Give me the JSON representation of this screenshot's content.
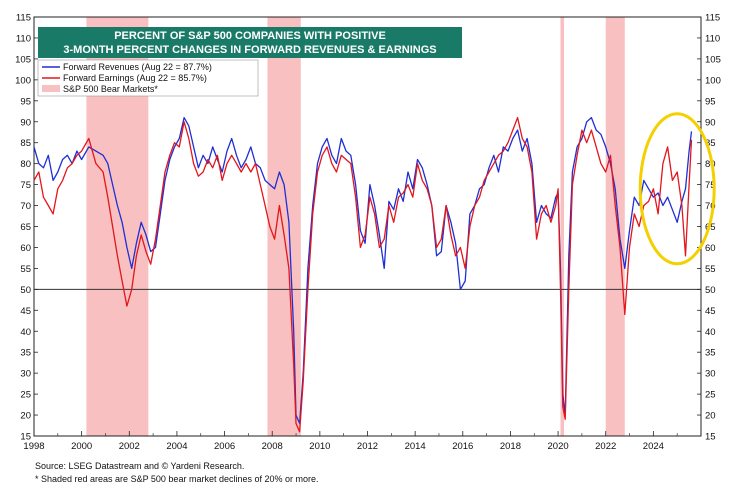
{
  "chart_data": {
    "type": "line",
    "title": [
      "PERCENT OF S&P 500 COMPANIES WITH POSITIVE",
      "3-MONTH PERCENT CHANGES IN FORWARD REVENUES & EARNINGS"
    ],
    "xlim": [
      1998,
      2026
    ],
    "ylim": [
      15,
      115
    ],
    "x_ticks": [
      "1998",
      "2000",
      "2002",
      "2004",
      "2006",
      "2008",
      "2010",
      "2012",
      "2014",
      "2016",
      "2018",
      "2020",
      "2022",
      "2024"
    ],
    "y_ticks": [
      15,
      20,
      25,
      30,
      35,
      40,
      45,
      50,
      55,
      60,
      65,
      70,
      75,
      80,
      85,
      90,
      95,
      100,
      105,
      110,
      115
    ],
    "reference_line": 50,
    "bear_markets": [
      [
        2000.2,
        2002.8
      ],
      [
        2007.8,
        2009.2
      ],
      [
        2020.1,
        2020.25
      ],
      [
        2022.0,
        2022.8
      ]
    ],
    "legend": [
      {
        "label": "Forward Revenues (Aug 22 = 87.7%)",
        "color": "#1f2fd6"
      },
      {
        "label": "Forward Earnings (Aug 22 = 85.7%)",
        "color": "#e3161b"
      },
      {
        "label": "S&P 500 Bear Markets*",
        "color": "#f8c0c0"
      }
    ],
    "series": [
      {
        "name": "Forward Revenues (Aug 22 = 87.7%)",
        "color": "#1f2fd6",
        "points": [
          [
            1998.0,
            84
          ],
          [
            1998.2,
            80
          ],
          [
            1998.4,
            79
          ],
          [
            1998.6,
            82
          ],
          [
            1998.8,
            76
          ],
          [
            1999.0,
            78
          ],
          [
            1999.2,
            81
          ],
          [
            1999.4,
            82
          ],
          [
            1999.6,
            80
          ],
          [
            1999.8,
            83
          ],
          [
            2000.0,
            81
          ],
          [
            2000.3,
            84
          ],
          [
            2000.6,
            83
          ],
          [
            2000.9,
            82
          ],
          [
            2001.1,
            80
          ],
          [
            2001.3,
            75
          ],
          [
            2001.5,
            70
          ],
          [
            2001.7,
            66
          ],
          [
            2001.9,
            60
          ],
          [
            2002.1,
            55
          ],
          [
            2002.3,
            61
          ],
          [
            2002.5,
            66
          ],
          [
            2002.7,
            63
          ],
          [
            2002.9,
            59
          ],
          [
            2003.1,
            60
          ],
          [
            2003.3,
            68
          ],
          [
            2003.5,
            76
          ],
          [
            2003.7,
            81
          ],
          [
            2003.9,
            84
          ],
          [
            2004.1,
            86
          ],
          [
            2004.3,
            91
          ],
          [
            2004.5,
            89
          ],
          [
            2004.7,
            84
          ],
          [
            2004.9,
            79
          ],
          [
            2005.1,
            82
          ],
          [
            2005.3,
            80
          ],
          [
            2005.5,
            84
          ],
          [
            2005.7,
            81
          ],
          [
            2005.9,
            78
          ],
          [
            2006.1,
            83
          ],
          [
            2006.3,
            86
          ],
          [
            2006.5,
            82
          ],
          [
            2006.7,
            79
          ],
          [
            2006.9,
            81
          ],
          [
            2007.1,
            84
          ],
          [
            2007.3,
            80
          ],
          [
            2007.5,
            79
          ],
          [
            2007.7,
            76
          ],
          [
            2007.9,
            75
          ],
          [
            2008.1,
            74
          ],
          [
            2008.3,
            78
          ],
          [
            2008.5,
            75
          ],
          [
            2008.7,
            66
          ],
          [
            2008.9,
            40
          ],
          [
            2009.0,
            20
          ],
          [
            2009.15,
            18
          ],
          [
            2009.3,
            30
          ],
          [
            2009.5,
            55
          ],
          [
            2009.7,
            70
          ],
          [
            2009.9,
            80
          ],
          [
            2010.1,
            84
          ],
          [
            2010.3,
            86
          ],
          [
            2010.5,
            82
          ],
          [
            2010.7,
            80
          ],
          [
            2010.9,
            86
          ],
          [
            2011.1,
            83
          ],
          [
            2011.3,
            82
          ],
          [
            2011.5,
            75
          ],
          [
            2011.7,
            64
          ],
          [
            2011.9,
            61
          ],
          [
            2012.1,
            75
          ],
          [
            2012.3,
            70
          ],
          [
            2012.5,
            63
          ],
          [
            2012.7,
            55
          ],
          [
            2012.9,
            71
          ],
          [
            2013.1,
            69
          ],
          [
            2013.3,
            74
          ],
          [
            2013.5,
            71
          ],
          [
            2013.7,
            78
          ],
          [
            2013.9,
            74
          ],
          [
            2014.1,
            81
          ],
          [
            2014.3,
            79
          ],
          [
            2014.5,
            75
          ],
          [
            2014.7,
            70
          ],
          [
            2014.9,
            58
          ],
          [
            2015.1,
            59
          ],
          [
            2015.3,
            70
          ],
          [
            2015.5,
            66
          ],
          [
            2015.7,
            61
          ],
          [
            2015.9,
            50
          ],
          [
            2016.1,
            52
          ],
          [
            2016.3,
            68
          ],
          [
            2016.5,
            70
          ],
          [
            2016.7,
            74
          ],
          [
            2016.9,
            75
          ],
          [
            2017.1,
            79
          ],
          [
            2017.3,
            82
          ],
          [
            2017.5,
            78
          ],
          [
            2017.7,
            84
          ],
          [
            2017.9,
            83
          ],
          [
            2018.1,
            86
          ],
          [
            2018.3,
            88
          ],
          [
            2018.5,
            83
          ],
          [
            2018.7,
            86
          ],
          [
            2018.9,
            80
          ],
          [
            2019.1,
            66
          ],
          [
            2019.3,
            70
          ],
          [
            2019.5,
            68
          ],
          [
            2019.7,
            67
          ],
          [
            2019.9,
            72
          ],
          [
            2020.0,
            73
          ],
          [
            2020.1,
            55
          ],
          [
            2020.2,
            25
          ],
          [
            2020.3,
            20
          ],
          [
            2020.45,
            58
          ],
          [
            2020.6,
            78
          ],
          [
            2020.8,
            84
          ],
          [
            2021.0,
            86
          ],
          [
            2021.2,
            90
          ],
          [
            2021.4,
            91
          ],
          [
            2021.6,
            88
          ],
          [
            2021.8,
            87
          ],
          [
            2022.0,
            84
          ],
          [
            2022.2,
            80
          ],
          [
            2022.4,
            74
          ],
          [
            2022.6,
            62
          ],
          [
            2022.8,
            55
          ],
          [
            2023.0,
            64
          ],
          [
            2023.2,
            72
          ],
          [
            2023.4,
            70
          ],
          [
            2023.6,
            76
          ],
          [
            2023.8,
            74
          ],
          [
            2024.0,
            72
          ],
          [
            2024.2,
            73
          ],
          [
            2024.4,
            70
          ],
          [
            2024.6,
            72
          ],
          [
            2024.8,
            69
          ],
          [
            2025.0,
            66
          ],
          [
            2025.2,
            71
          ],
          [
            2025.35,
            74
          ],
          [
            2025.5,
            83
          ],
          [
            2025.6,
            87.7
          ]
        ]
      },
      {
        "name": "Forward Earnings (Aug 22 = 85.7%)",
        "color": "#e3161b",
        "points": [
          [
            1998.0,
            76
          ],
          [
            1998.2,
            78
          ],
          [
            1998.4,
            72
          ],
          [
            1998.6,
            70
          ],
          [
            1998.8,
            68
          ],
          [
            1999.0,
            74
          ],
          [
            1999.2,
            76
          ],
          [
            1999.4,
            79
          ],
          [
            1999.6,
            80
          ],
          [
            1999.8,
            82
          ],
          [
            2000.0,
            83
          ],
          [
            2000.3,
            86
          ],
          [
            2000.6,
            80
          ],
          [
            2000.9,
            78
          ],
          [
            2001.1,
            72
          ],
          [
            2001.3,
            65
          ],
          [
            2001.5,
            58
          ],
          [
            2001.7,
            52
          ],
          [
            2001.9,
            46
          ],
          [
            2002.1,
            50
          ],
          [
            2002.3,
            58
          ],
          [
            2002.5,
            63
          ],
          [
            2002.7,
            59
          ],
          [
            2002.9,
            56
          ],
          [
            2003.1,
            62
          ],
          [
            2003.3,
            70
          ],
          [
            2003.5,
            78
          ],
          [
            2003.7,
            82
          ],
          [
            2003.9,
            85
          ],
          [
            2004.1,
            84
          ],
          [
            2004.3,
            90
          ],
          [
            2004.5,
            86
          ],
          [
            2004.7,
            80
          ],
          [
            2004.9,
            77
          ],
          [
            2005.1,
            78
          ],
          [
            2005.3,
            81
          ],
          [
            2005.5,
            79
          ],
          [
            2005.7,
            82
          ],
          [
            2005.9,
            76
          ],
          [
            2006.1,
            80
          ],
          [
            2006.3,
            82
          ],
          [
            2006.5,
            80
          ],
          [
            2006.7,
            78
          ],
          [
            2006.9,
            80
          ],
          [
            2007.1,
            78
          ],
          [
            2007.3,
            80
          ],
          [
            2007.5,
            75
          ],
          [
            2007.7,
            70
          ],
          [
            2007.9,
            65
          ],
          [
            2008.1,
            62
          ],
          [
            2008.3,
            70
          ],
          [
            2008.5,
            63
          ],
          [
            2008.7,
            55
          ],
          [
            2008.9,
            32
          ],
          [
            2009.0,
            18
          ],
          [
            2009.15,
            16
          ],
          [
            2009.3,
            28
          ],
          [
            2009.5,
            50
          ],
          [
            2009.7,
            68
          ],
          [
            2009.9,
            78
          ],
          [
            2010.1,
            82
          ],
          [
            2010.3,
            84
          ],
          [
            2010.5,
            80
          ],
          [
            2010.7,
            78
          ],
          [
            2010.9,
            82
          ],
          [
            2011.1,
            81
          ],
          [
            2011.3,
            80
          ],
          [
            2011.5,
            72
          ],
          [
            2011.7,
            60
          ],
          [
            2011.9,
            63
          ],
          [
            2012.1,
            72
          ],
          [
            2012.3,
            68
          ],
          [
            2012.5,
            60
          ],
          [
            2012.7,
            62
          ],
          [
            2012.9,
            70
          ],
          [
            2013.1,
            66
          ],
          [
            2013.3,
            72
          ],
          [
            2013.5,
            73
          ],
          [
            2013.7,
            75
          ],
          [
            2013.9,
            72
          ],
          [
            2014.1,
            80
          ],
          [
            2014.3,
            76
          ],
          [
            2014.5,
            74
          ],
          [
            2014.7,
            70
          ],
          [
            2014.9,
            60
          ],
          [
            2015.1,
            62
          ],
          [
            2015.3,
            70
          ],
          [
            2015.5,
            63
          ],
          [
            2015.7,
            58
          ],
          [
            2015.9,
            60
          ],
          [
            2016.1,
            55
          ],
          [
            2016.3,
            65
          ],
          [
            2016.5,
            70
          ],
          [
            2016.7,
            72
          ],
          [
            2016.9,
            76
          ],
          [
            2017.1,
            78
          ],
          [
            2017.3,
            80
          ],
          [
            2017.5,
            82
          ],
          [
            2017.7,
            83
          ],
          [
            2017.9,
            85
          ],
          [
            2018.1,
            88
          ],
          [
            2018.3,
            91
          ],
          [
            2018.5,
            86
          ],
          [
            2018.7,
            84
          ],
          [
            2018.9,
            78
          ],
          [
            2019.1,
            62
          ],
          [
            2019.3,
            68
          ],
          [
            2019.5,
            70
          ],
          [
            2019.7,
            66
          ],
          [
            2019.9,
            70
          ],
          [
            2020.0,
            74
          ],
          [
            2020.1,
            50
          ],
          [
            2020.2,
            22
          ],
          [
            2020.3,
            19
          ],
          [
            2020.45,
            50
          ],
          [
            2020.6,
            75
          ],
          [
            2020.8,
            82
          ],
          [
            2021.0,
            88
          ],
          [
            2021.2,
            85
          ],
          [
            2021.4,
            88
          ],
          [
            2021.6,
            84
          ],
          [
            2021.8,
            80
          ],
          [
            2022.0,
            78
          ],
          [
            2022.2,
            82
          ],
          [
            2022.4,
            70
          ],
          [
            2022.6,
            60
          ],
          [
            2022.8,
            44
          ],
          [
            2023.0,
            60
          ],
          [
            2023.2,
            68
          ],
          [
            2023.4,
            65
          ],
          [
            2023.6,
            70
          ],
          [
            2023.8,
            71
          ],
          [
            2024.0,
            74
          ],
          [
            2024.2,
            68
          ],
          [
            2024.4,
            80
          ],
          [
            2024.6,
            84
          ],
          [
            2024.8,
            76
          ],
          [
            2025.0,
            78
          ],
          [
            2025.2,
            70
          ],
          [
            2025.35,
            58
          ],
          [
            2025.5,
            75
          ],
          [
            2025.6,
            85.7
          ]
        ]
      }
    ],
    "annotation": "yellow circle highlight"
  },
  "footnotes": {
    "source": "Source: LSEG Datastream and © Yardeni Research.",
    "note": "* Shaded red areas are S&P 500 bear market declines of 20% or more."
  },
  "colors": {
    "title_bg": "#1a7a68",
    "highlight": "#f4d000",
    "reference_line": "#333333"
  }
}
